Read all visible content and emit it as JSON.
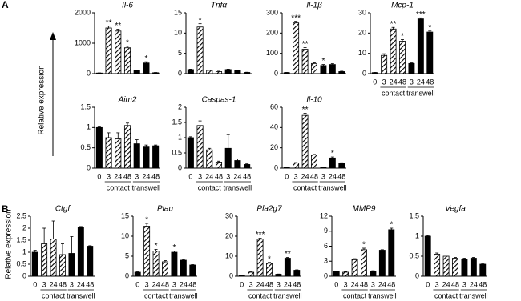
{
  "panels": [
    {
      "label": "A",
      "ylabel": "Relative expression"
    },
    {
      "label": "B",
      "ylabel": "Relative expression"
    }
  ],
  "chart_data": [
    {
      "type": "bar",
      "title": "Il-6",
      "color": "#000000",
      "values": [
        20,
        1500,
        1400,
        850,
        100,
        350,
        30
      ],
      "errors": [
        5,
        60,
        60,
        50,
        15,
        40,
        8
      ],
      "annotations": [
        null,
        "**",
        "**",
        "*",
        null,
        "*",
        null
      ],
      "ylim": [
        0,
        2000
      ],
      "yticks": [
        0,
        1000,
        2000
      ]
    },
    {
      "type": "bar",
      "title": "Tnfα",
      "color": "#000000",
      "values": [
        1,
        11.5,
        0.8,
        0.5,
        1,
        0.8,
        0.3
      ],
      "errors": [
        0.1,
        0.8,
        0.1,
        0.1,
        0.1,
        0.1,
        0.05
      ],
      "annotations": [
        null,
        "*",
        null,
        null,
        null,
        null,
        null
      ],
      "ylim": [
        0,
        15
      ],
      "yticks": [
        0,
        5,
        10,
        15
      ]
    },
    {
      "type": "bar",
      "title": "Il-1β",
      "color": "#000000",
      "values": [
        5,
        250,
        120,
        50,
        40,
        45,
        10
      ],
      "errors": [
        1,
        8,
        8,
        4,
        5,
        4,
        2
      ],
      "annotations": [
        null,
        "***",
        "**",
        null,
        "*",
        null,
        null
      ],
      "ylim": [
        0,
        300
      ],
      "yticks": [
        0,
        100,
        200,
        300
      ]
    },
    {
      "type": "bar",
      "title": "Mcp-1",
      "color": "#000000",
      "categories": [
        "0",
        "3",
        "24",
        "48",
        "3",
        "24",
        "48"
      ],
      "groups": [
        "contact",
        "transwell"
      ],
      "values": [
        0.5,
        9,
        22,
        16,
        5,
        27,
        20.5
      ],
      "errors": [
        0.1,
        0.8,
        0.8,
        0.8,
        0.3,
        0.5,
        0.5
      ],
      "annotations": [
        null,
        null,
        "**",
        "*",
        null,
        "***",
        "*"
      ],
      "ylim": [
        0,
        30
      ],
      "yticks": [
        0,
        10,
        20,
        30
      ]
    },
    {
      "type": "bar",
      "title": "Aim2",
      "color": "#000000",
      "categories": [
        "0",
        "3",
        "24",
        "48",
        "3",
        "24",
        "48"
      ],
      "groups": [
        "contact",
        "transwell"
      ],
      "values": [
        1,
        0.75,
        0.72,
        1.05,
        0.6,
        0.52,
        0.55
      ],
      "errors": [
        0.02,
        0.12,
        0.15,
        0.06,
        0.1,
        0.05,
        0.02
      ],
      "annotations": [
        null,
        null,
        null,
        null,
        null,
        null,
        null
      ],
      "ylim": [
        0,
        1.5
      ],
      "yticks": [
        0,
        0.5,
        1,
        1.5
      ]
    },
    {
      "type": "bar",
      "title": "Caspas-1",
      "color": "#000000",
      "categories": [
        "0",
        "3",
        "24",
        "48",
        "3",
        "24",
        "48"
      ],
      "groups": [
        "contact",
        "transwell"
      ],
      "values": [
        1,
        1.4,
        0.6,
        0.2,
        0.65,
        0.25,
        0.12
      ],
      "errors": [
        0.03,
        0.15,
        0.05,
        0.03,
        0.45,
        0.05,
        0.02
      ],
      "annotations": [
        null,
        null,
        null,
        null,
        null,
        null,
        null
      ],
      "ylim": [
        0,
        2
      ],
      "yticks": [
        0,
        0.5,
        1,
        1.5,
        2
      ]
    },
    {
      "type": "bar",
      "title": "Il-10",
      "color": "#000000",
      "categories": [
        "0",
        "3",
        "24",
        "48",
        "3",
        "24",
        "48"
      ],
      "groups": [
        "contact",
        "transwell"
      ],
      "values": [
        0.5,
        5,
        52,
        13,
        0.5,
        10,
        5
      ],
      "errors": [
        0.1,
        0.5,
        2,
        0.5,
        0.1,
        1,
        0.3
      ],
      "annotations": [
        null,
        null,
        "**",
        null,
        null,
        "*",
        null
      ],
      "ylim": [
        0,
        60
      ],
      "yticks": [
        0,
        20,
        40,
        60
      ]
    },
    {
      "type": "bar",
      "title": "Ctgf",
      "color": "#000000",
      "categories": [
        "0",
        "3",
        "24",
        "48",
        "3",
        "24",
        "48"
      ],
      "groups": [
        "contact",
        "transwell"
      ],
      "values": [
        1,
        1.35,
        1.55,
        0.9,
        0.95,
        2.05,
        1.25
      ],
      "errors": [
        0.08,
        0.65,
        0.75,
        0.45,
        0.7,
        0.02,
        0.02
      ],
      "annotations": [
        null,
        null,
        null,
        null,
        null,
        null,
        null
      ],
      "ylim": [
        0,
        2.5
      ],
      "yticks": [
        0,
        0.5,
        1,
        1.5,
        2,
        2.5
      ]
    },
    {
      "type": "bar",
      "title": "Plau",
      "color": "#000000",
      "categories": [
        "0",
        "3",
        "24",
        "48",
        "3",
        "24",
        "48"
      ],
      "groups": [
        "contact",
        "transwell"
      ],
      "values": [
        1,
        12.5,
        6.3,
        3.6,
        6,
        4,
        2.8
      ],
      "errors": [
        0.1,
        0.7,
        0.4,
        0.3,
        0.3,
        0.2,
        0.1
      ],
      "annotations": [
        null,
        "*",
        "*",
        null,
        "*",
        null,
        null
      ],
      "ylim": [
        0,
        15
      ],
      "yticks": [
        0,
        5,
        10,
        15
      ]
    },
    {
      "type": "bar",
      "title": "Pla2g7",
      "color": "#000000",
      "categories": [
        "0",
        "3",
        "24",
        "48",
        "3",
        "24",
        "48"
      ],
      "groups": [
        "contact",
        "transwell"
      ],
      "values": [
        0.5,
        2,
        18.5,
        6.5,
        1,
        9,
        3
      ],
      "errors": [
        0.1,
        0.2,
        0.5,
        0.4,
        0.1,
        0.4,
        0.2
      ],
      "annotations": [
        null,
        null,
        "***",
        "*",
        null,
        "**",
        null
      ],
      "ylim": [
        0,
        30
      ],
      "yticks": [
        0,
        10,
        20,
        30
      ]
    },
    {
      "type": "bar",
      "title": "MMP9",
      "color": "#000000",
      "categories": [
        "0",
        "3",
        "24",
        "48",
        "3",
        "24",
        "48"
      ],
      "groups": [
        "contact",
        "transwell"
      ],
      "values": [
        1,
        0.8,
        3.3,
        5.3,
        1,
        5.2,
        9.3
      ],
      "errors": [
        0.05,
        0.1,
        0.2,
        0.3,
        0.1,
        0.1,
        0.3
      ],
      "annotations": [
        null,
        null,
        null,
        "*",
        null,
        null,
        "*"
      ],
      "ylim": [
        0,
        12
      ],
      "yticks": [
        0,
        3,
        6,
        9,
        12
      ]
    },
    {
      "type": "bar",
      "title": "Vegfa",
      "color": "#000000",
      "categories": [
        "0",
        "3",
        "24",
        "48",
        "3",
        "24",
        "48"
      ],
      "groups": [
        "contact",
        "transwell"
      ],
      "values": [
        1,
        0.55,
        0.5,
        0.45,
        0.43,
        0.45,
        0.3
      ],
      "errors": [
        0.02,
        0.03,
        0.03,
        0.02,
        0.02,
        0.02,
        0.02
      ],
      "annotations": [
        null,
        null,
        null,
        null,
        null,
        null,
        null
      ],
      "ylim": [
        0,
        1.5
      ],
      "yticks": [
        0,
        0.5,
        1,
        1.5
      ]
    }
  ]
}
